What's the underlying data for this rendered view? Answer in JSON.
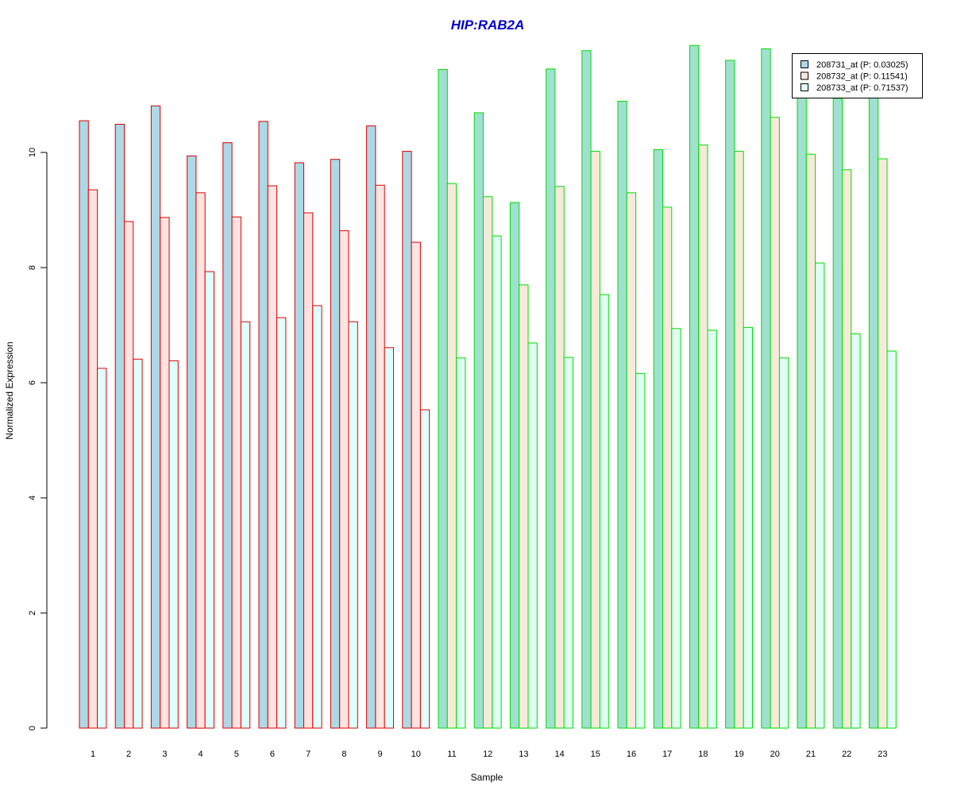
{
  "chart_data": {
    "type": "bar",
    "title": "HIP:RAB2A",
    "xlabel": "Sample",
    "ylabel": "Normalized Expression",
    "ylim": [
      0,
      12
    ],
    "yticks": [
      "0",
      "2",
      "4",
      "6",
      "8",
      "10"
    ],
    "categories": [
      "1",
      "2",
      "3",
      "4",
      "5",
      "6",
      "7",
      "8",
      "9",
      "10",
      "11",
      "12",
      "13",
      "14",
      "15",
      "16",
      "17",
      "18",
      "19",
      "20",
      "21",
      "22",
      "23"
    ],
    "groups": [
      {
        "border_color": "#dd0000",
        "samples": 10
      },
      {
        "border_color": "#00dd00",
        "samples": 13
      }
    ],
    "series": [
      {
        "name": "208731_at (P: 0.03025)",
        "legend_fill": "#add8e6",
        "fills": [
          "#add8e6",
          "#a0e0d0"
        ],
        "values": [
          10.55,
          10.49,
          10.81,
          9.94,
          10.17,
          10.54,
          9.82,
          9.88,
          10.46,
          10.02,
          11.44,
          10.69,
          9.13,
          11.45,
          11.77,
          10.89,
          10.05,
          11.86,
          11.6,
          11.8,
          11.0,
          10.94,
          11.0
        ]
      },
      {
        "name": "208732_at (P: 0.11541)",
        "legend_fill": "#ffe4e1",
        "fills": [
          "#ffe4e1",
          "#f6ebd9"
        ],
        "values": [
          9.35,
          8.8,
          8.87,
          9.3,
          8.88,
          9.42,
          8.95,
          8.64,
          9.43,
          8.44,
          9.46,
          9.23,
          7.7,
          9.41,
          10.02,
          9.3,
          9.05,
          10.13,
          10.02,
          10.61,
          9.97,
          9.7,
          9.89
        ]
      },
      {
        "name": "208733_at (P: 0.71537)",
        "legend_fill": "#e0ffff",
        "fills": [
          "#e0ffff",
          "#e0fff4"
        ],
        "values": [
          6.25,
          6.41,
          6.38,
          7.93,
          7.06,
          7.13,
          7.34,
          7.06,
          6.61,
          5.53,
          6.43,
          8.55,
          6.69,
          6.44,
          7.53,
          6.16,
          6.94,
          6.91,
          6.96,
          6.43,
          8.08,
          6.85,
          6.55
        ]
      }
    ],
    "legend_position": "top-right"
  }
}
